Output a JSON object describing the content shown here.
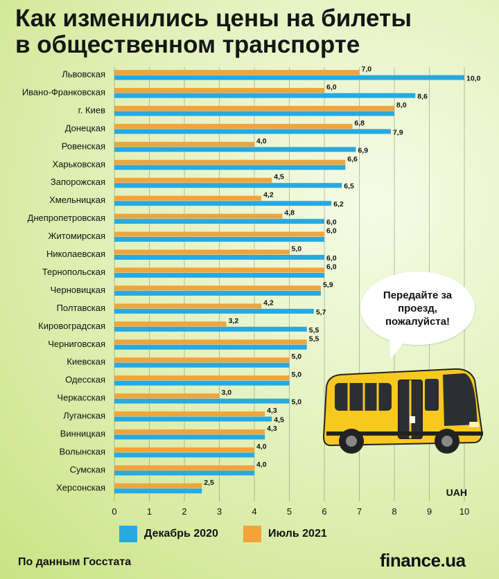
{
  "title_line1": "Как изменились цены на билеты",
  "title_line2": "в общественном транспорте",
  "speech_bubble": "Передайте за проезд, пожалуйста!",
  "source": "По данным Госстата",
  "logo": "finance.ua",
  "colors": {
    "dec": "#28a9e0",
    "jul": "#f2a43a"
  },
  "chart_data": {
    "type": "bar",
    "orientation": "horizontal",
    "unit": "UAH",
    "xlim": [
      0,
      10
    ],
    "xticks": [
      "0",
      "1",
      "2",
      "3",
      "4",
      "5",
      "6",
      "7",
      "8",
      "9",
      "10"
    ],
    "categories": [
      "Львовская",
      "Ивано-Франковская",
      "г. Киев",
      "Донецкая",
      "Ровенская",
      "Харьковская",
      "Запорожская",
      "Хмельницкая",
      "Днепропетровская",
      "Житомирская",
      "Николаевская",
      "Тернопольская",
      "Черновицкая",
      "Полтавская",
      "Кировоградская",
      "Черниговская",
      "Киевская",
      "Одесская",
      "Черкасская",
      "Луганская",
      "Винницкая",
      "Волынская",
      "Сумская",
      "Херсонская"
    ],
    "series": [
      {
        "name": "Июль 2021",
        "values": [
          7.0,
          6.0,
          8.0,
          6.8,
          4.0,
          6.6,
          4.5,
          4.2,
          4.8,
          6.0,
          5.0,
          6.0,
          5.9,
          4.2,
          3.2,
          5.5,
          5.0,
          5.0,
          3.0,
          4.3,
          4.3,
          4.0,
          4.0,
          2.5
        ],
        "labels": [
          "7,0",
          "6,0",
          "8,0",
          "6,8",
          "4,0",
          "6,6",
          "4,5",
          "4,2",
          "4,8",
          "6,0",
          "5,0",
          "6,0",
          "5,9",
          "4,2",
          "3,2",
          "5,5",
          "5,0",
          "5,0",
          "3,0",
          "4,3",
          "4,3",
          "4,0",
          "4,0",
          "2,5"
        ]
      },
      {
        "name": "Декабрь 2020",
        "values": [
          10.0,
          8.6,
          8.0,
          7.9,
          6.9,
          6.6,
          6.5,
          6.2,
          6.0,
          6.0,
          6.0,
          6.0,
          5.9,
          5.7,
          5.5,
          5.5,
          5.0,
          5.0,
          5.0,
          4.5,
          4.3,
          4.0,
          4.0,
          2.5
        ],
        "labels": [
          "10,0",
          "8,6",
          "",
          "7,9",
          "6,9",
          "",
          "6,5",
          "6,2",
          "6,0",
          "",
          "6,0",
          "",
          "",
          "5,7",
          "5,5",
          "",
          "",
          "",
          "5,0",
          "4,5",
          "",
          "",
          "",
          ""
        ]
      }
    ],
    "legend": [
      "Декабрь 2020",
      "Июль 2021"
    ]
  }
}
